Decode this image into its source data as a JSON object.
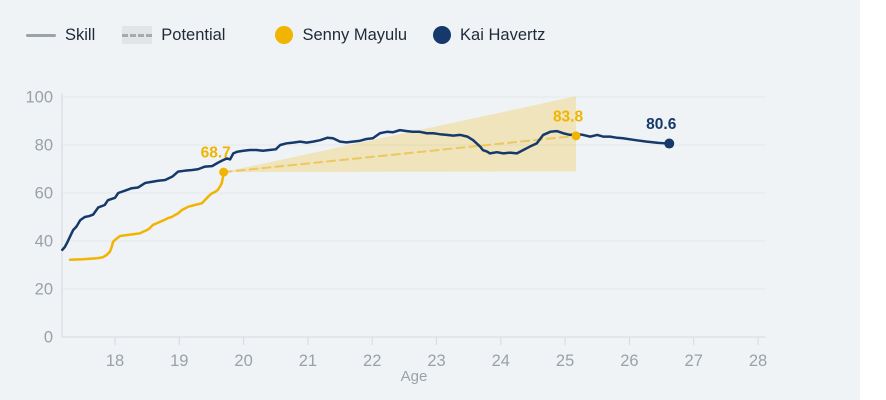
{
  "colors": {
    "card_background": "#F0F3F6",
    "page_background": "#FFFFFF",
    "navy": "#16396B",
    "gold": "#F1B400",
    "cone_fill": "rgba(240,178,0,0.24)",
    "dashed_line": "#EDC75F",
    "grid_line": "#E4E8EC",
    "axis_line": "#D4DAE0",
    "tick_text": "#9AA1A9",
    "legend_text": "#1F2937",
    "skill_swatch": "#9CA2A8"
  },
  "legend": {
    "skill_label": "Skill",
    "potential_label": "Potential",
    "players": [
      {
        "name": "Senny Mayulu",
        "color": "#F1B400"
      },
      {
        "name": "Kai Havertz",
        "color": "#16396B"
      }
    ]
  },
  "chart_data": {
    "type": "line",
    "title": "",
    "xlabel": "Age",
    "ylabel": "",
    "x_ticks": [
      18,
      19,
      20,
      21,
      22,
      23,
      24,
      25,
      26,
      27,
      28
    ],
    "y_ticks": [
      0,
      20,
      40,
      60,
      80,
      100
    ],
    "xlim": [
      17.17,
      28.11
    ],
    "ylim": [
      0,
      100
    ],
    "grid": "horizontal",
    "legend_position": "top",
    "series": [
      {
        "name": "Senny Mayulu skill",
        "color": "#F1B400",
        "style": "solid",
        "points": [
          [
            17.3,
            32.2
          ],
          [
            17.5,
            32.4
          ],
          [
            17.72,
            32.8
          ],
          [
            17.81,
            33.2
          ],
          [
            17.87,
            34.2
          ],
          [
            17.92,
            35.5
          ],
          [
            17.95,
            37.6
          ],
          [
            17.97,
            39.7
          ],
          [
            18.03,
            41.1
          ],
          [
            18.08,
            42.1
          ],
          [
            18.19,
            42.5
          ],
          [
            18.28,
            42.8
          ],
          [
            18.39,
            43.2
          ],
          [
            18.44,
            43.9
          ],
          [
            18.5,
            44.6
          ],
          [
            18.54,
            45.3
          ],
          [
            18.59,
            46.7
          ],
          [
            18.65,
            47.4
          ],
          [
            18.7,
            48.0
          ],
          [
            18.78,
            48.9
          ],
          [
            18.82,
            49.5
          ],
          [
            18.89,
            50.1
          ],
          [
            18.93,
            50.8
          ],
          [
            18.98,
            51.5
          ],
          [
            19.04,
            52.9
          ],
          [
            19.09,
            53.6
          ],
          [
            19.14,
            54.3
          ],
          [
            19.24,
            55.0
          ],
          [
            19.35,
            55.7
          ],
          [
            19.4,
            57.1
          ],
          [
            19.45,
            58.5
          ],
          [
            19.51,
            59.9
          ],
          [
            19.56,
            60.5
          ],
          [
            19.6,
            61.3
          ],
          [
            19.63,
            62.6
          ],
          [
            19.66,
            64.0
          ],
          [
            19.68,
            66.8
          ],
          [
            19.69,
            68.7
          ]
        ]
      },
      {
        "name": "Senny Mayulu potential",
        "color": "#EDC75F",
        "style": "dashed",
        "points": [
          [
            19.69,
            68.7
          ],
          [
            25.17,
            83.8
          ]
        ]
      },
      {
        "name": "Kai Havertz skill",
        "color": "#16396B",
        "style": "solid",
        "points": [
          [
            17.18,
            36.3
          ],
          [
            17.22,
            37.5
          ],
          [
            17.25,
            39.0
          ],
          [
            17.3,
            41.8
          ],
          [
            17.35,
            44.6
          ],
          [
            17.4,
            46.0
          ],
          [
            17.46,
            48.7
          ],
          [
            17.53,
            50.0
          ],
          [
            17.6,
            50.4
          ],
          [
            17.66,
            51.0
          ],
          [
            17.74,
            54.0
          ],
          [
            17.84,
            55.0
          ],
          [
            17.89,
            57.0
          ],
          [
            18.0,
            58.0
          ],
          [
            18.05,
            60.0
          ],
          [
            18.16,
            61.0
          ],
          [
            18.26,
            62.0
          ],
          [
            18.36,
            62.3
          ],
          [
            18.47,
            64.2
          ],
          [
            18.58,
            64.7
          ],
          [
            18.67,
            65.1
          ],
          [
            18.78,
            65.4
          ],
          [
            18.89,
            66.8
          ],
          [
            18.98,
            68.9
          ],
          [
            19.09,
            69.3
          ],
          [
            19.2,
            69.6
          ],
          [
            19.29,
            69.9
          ],
          [
            19.4,
            71.0
          ],
          [
            19.51,
            71.2
          ],
          [
            19.6,
            72.6
          ],
          [
            19.68,
            73.7
          ],
          [
            19.74,
            74.4
          ],
          [
            19.79,
            74.0
          ],
          [
            19.84,
            76.5
          ],
          [
            19.9,
            77.2
          ],
          [
            20.0,
            77.6
          ],
          [
            20.1,
            77.9
          ],
          [
            20.2,
            77.9
          ],
          [
            20.3,
            77.6
          ],
          [
            20.4,
            77.9
          ],
          [
            20.5,
            78.2
          ],
          [
            20.57,
            80.0
          ],
          [
            20.67,
            80.7
          ],
          [
            20.77,
            81.0
          ],
          [
            20.88,
            81.4
          ],
          [
            20.98,
            81.0
          ],
          [
            21.08,
            81.4
          ],
          [
            21.19,
            82.0
          ],
          [
            21.3,
            83.0
          ],
          [
            21.39,
            82.8
          ],
          [
            21.5,
            81.4
          ],
          [
            21.6,
            81.1
          ],
          [
            21.7,
            81.4
          ],
          [
            21.8,
            81.7
          ],
          [
            21.91,
            82.5
          ],
          [
            22.01,
            82.8
          ],
          [
            22.12,
            84.9
          ],
          [
            22.23,
            85.5
          ],
          [
            22.32,
            85.3
          ],
          [
            22.43,
            86.2
          ],
          [
            22.54,
            85.8
          ],
          [
            22.63,
            85.5
          ],
          [
            22.74,
            85.5
          ],
          [
            22.85,
            84.9
          ],
          [
            22.95,
            84.9
          ],
          [
            23.05,
            84.5
          ],
          [
            23.16,
            84.2
          ],
          [
            23.26,
            83.9
          ],
          [
            23.37,
            84.2
          ],
          [
            23.48,
            83.5
          ],
          [
            23.57,
            82.0
          ],
          [
            23.68,
            79.3
          ],
          [
            23.72,
            77.9
          ],
          [
            23.79,
            77.2
          ],
          [
            23.83,
            76.5
          ],
          [
            23.94,
            77.0
          ],
          [
            24.04,
            76.5
          ],
          [
            24.14,
            76.8
          ],
          [
            24.25,
            76.5
          ],
          [
            24.35,
            77.9
          ],
          [
            24.45,
            79.3
          ],
          [
            24.56,
            80.7
          ],
          [
            24.66,
            84.2
          ],
          [
            24.77,
            85.5
          ],
          [
            24.87,
            85.8
          ],
          [
            24.97,
            84.9
          ],
          [
            25.08,
            84.2
          ],
          [
            25.19,
            84.5
          ],
          [
            25.28,
            84.2
          ],
          [
            25.39,
            83.5
          ],
          [
            25.5,
            84.2
          ],
          [
            25.59,
            83.5
          ],
          [
            25.7,
            83.5
          ],
          [
            25.81,
            83.0
          ],
          [
            25.9,
            82.8
          ],
          [
            26.1,
            82.0
          ],
          [
            26.27,
            81.4
          ],
          [
            26.45,
            80.9
          ],
          [
            26.62,
            80.6
          ]
        ]
      }
    ],
    "potential_cone": {
      "points": [
        [
          19.69,
          68.7
        ],
        [
          25.17,
          100.3
        ],
        [
          25.17,
          69.0
        ]
      ],
      "fill": "rgba(240,178,0,0.24)"
    },
    "markers": [
      {
        "label": "68.7",
        "age": 19.69,
        "value": 68.7,
        "color": "#F1B400",
        "r": 4.5
      },
      {
        "label": "83.8",
        "age": 25.17,
        "value": 83.8,
        "color": "#F1B400",
        "r": 4.5
      },
      {
        "label": "80.6",
        "age": 26.62,
        "value": 80.6,
        "color": "#16396B",
        "r": 5
      }
    ]
  }
}
